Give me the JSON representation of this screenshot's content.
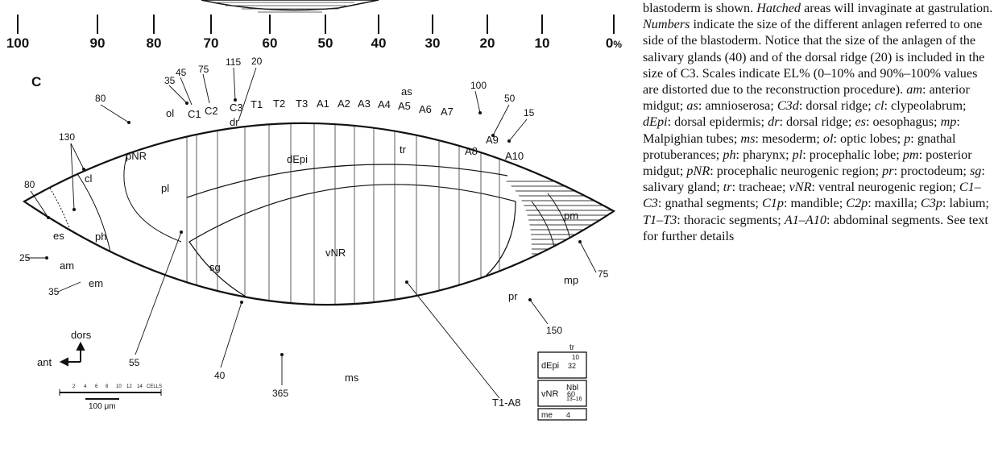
{
  "scale": {
    "ticks": [
      "100",
      "90",
      "80",
      "70",
      "60",
      "50",
      "40",
      "30",
      "20",
      "10",
      "0"
    ],
    "unit": "%"
  },
  "panel_letter": "C",
  "top_numbers": [
    "35",
    "45",
    "75",
    "115",
    "20",
    "80",
    "100",
    "50",
    "15",
    "130",
    "80",
    "25",
    "35",
    "75",
    "150",
    "365",
    "40",
    "55"
  ],
  "segments": [
    "ol",
    "C1",
    "C2",
    "C3",
    "dr",
    "T1",
    "T2",
    "T3",
    "A1",
    "A2",
    "A3",
    "A4",
    "A5",
    "A6",
    "A7",
    "A8",
    "A9",
    "A10"
  ],
  "regions": [
    "as",
    "pNR",
    "dEpi",
    "tr",
    "cl",
    "pl",
    "es",
    "ph",
    "am",
    "em",
    "vNR",
    "sg",
    "pm",
    "mp",
    "pr",
    "ms",
    "T1-A8"
  ],
  "axis": {
    "dorsal": "dors",
    "anterior": "ant"
  },
  "scale_bar": {
    "cells_label": "CELLS",
    "cell_ticks": [
      "2",
      "4",
      "6",
      "8",
      "10",
      "12",
      "14"
    ],
    "length": "100 μm"
  },
  "box": {
    "rows": [
      {
        "label": "dEpi",
        "value": "32",
        "side_top": "tr",
        "side_value": "10"
      },
      {
        "label": "vNR",
        "value": "60",
        "side_top": "Nbl",
        "side_value": "13–16"
      },
      {
        "label": "me",
        "value": "4"
      }
    ]
  },
  "caption": {
    "line1": "blastoderm is shown.",
    "hatched": "Hatched",
    "line1b": "areas will",
    "line2": "invaginate at gastrulation.",
    "numbers": "Numbers",
    "line2b": "indicate the size of the different anlagen referred to one side of the blastoderm. Notice that the size of the anlagen of the salivary glands (40) and of the dorsal ridge (20) is included in the size of C3. Scales indicate EL% (0–10% and 90%–100% values are distorted due to the reconstruction procedure).",
    "abbrev": [
      [
        "am",
        "anterior midgut;"
      ],
      [
        "as",
        "amnioserosa;"
      ],
      [
        "C3d",
        "dorsal ridge;"
      ],
      [
        "cl",
        "clypeolabrum;"
      ],
      [
        "dEpi",
        "dorsal epidermis;"
      ],
      [
        "dr",
        "dorsal ridge;"
      ],
      [
        "es",
        "oesophagus;"
      ],
      [
        "mp",
        "Malpighian tubes;"
      ],
      [
        "ms",
        "mesoderm;"
      ],
      [
        "ol",
        "optic lobes;"
      ],
      [
        "p",
        "gnathal protuberances;"
      ],
      [
        "ph",
        "pharynx;"
      ],
      [
        "pl",
        "procephalic lobe;"
      ],
      [
        "pm",
        "posterior midgut;"
      ],
      [
        "pNR",
        "procephalic neurogenic region;"
      ],
      [
        "pr",
        "proctodeum;"
      ],
      [
        "sg",
        "salivary gland;"
      ],
      [
        "tr",
        "tracheae;"
      ],
      [
        "vNR",
        "ventral neurogenic region;"
      ],
      [
        "C1–C3",
        "gnathal segments;"
      ],
      [
        "C1p",
        "mandible;"
      ],
      [
        "C2p",
        "maxilla;"
      ],
      [
        "C3p",
        "labium;"
      ],
      [
        "T1–T3",
        "thoracic segments;"
      ],
      [
        "A1–A10",
        "abdominal segments."
      ]
    ],
    "tail": "See text for further details"
  }
}
